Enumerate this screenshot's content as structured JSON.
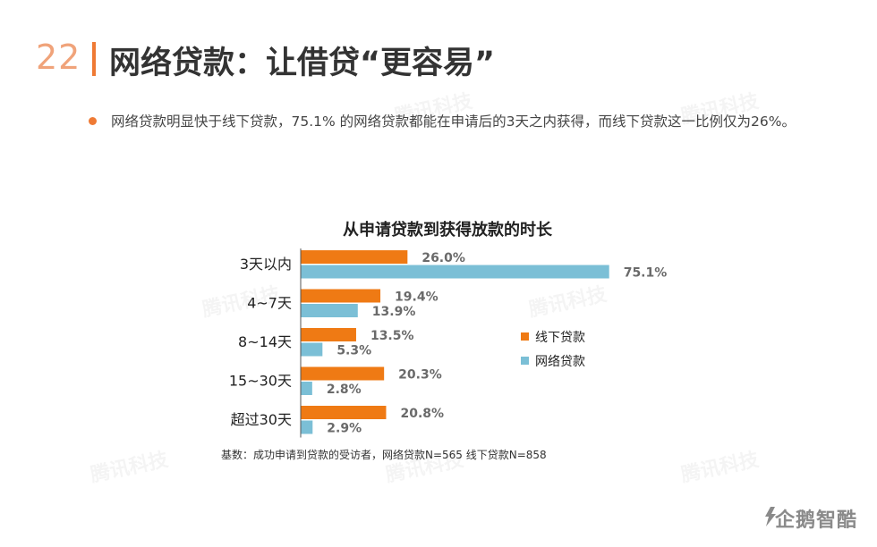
{
  "page": {
    "number": "22",
    "title": "网络贷款：让借贷“更容易”",
    "bullet": "网络贷款明显快于线下贷款，75.1% 的网络贷款都能在申请后的3天之内获得，而线下贷款这一比例仅为26%。",
    "footnote": "基数：成功申请到贷款的受访者，网络贷款N=565 线下贷款N=858",
    "brand": "企鹅智酷",
    "watermark": "腾讯科技"
  },
  "colors": {
    "offline": "#ef7a14",
    "online": "#7bbfd6",
    "accent": "#ef7a34"
  },
  "chart_data": {
    "type": "bar",
    "orientation": "horizontal",
    "title": "从申请贷款到获得放款的时长",
    "categories": [
      "3天以内",
      "4~7天",
      "8~14天",
      "15~30天",
      "超过30天"
    ],
    "series": [
      {
        "name": "线下贷款",
        "values": [
          26.0,
          19.4,
          13.5,
          20.3,
          20.8
        ],
        "labels": [
          "26.0%",
          "19.4%",
          "13.5%",
          "20.3%",
          "20.8%"
        ]
      },
      {
        "name": "网络贷款",
        "values": [
          75.1,
          13.9,
          5.3,
          2.8,
          2.9
        ],
        "labels": [
          "75.1%",
          "13.9%",
          "5.3%",
          "2.8%",
          "2.9%"
        ]
      }
    ],
    "xlim": [
      0,
      80
    ],
    "legend": "right",
    "grid": false
  }
}
